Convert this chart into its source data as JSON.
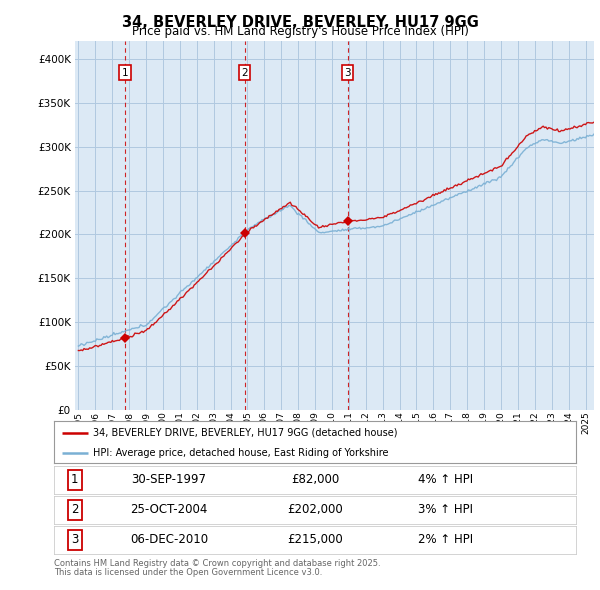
{
  "title": "34, BEVERLEY DRIVE, BEVERLEY, HU17 9GG",
  "subtitle": "Price paid vs. HM Land Registry's House Price Index (HPI)",
  "ylim": [
    0,
    420000
  ],
  "yticks": [
    0,
    50000,
    100000,
    150000,
    200000,
    250000,
    300000,
    350000,
    400000
  ],
  "legend_line1": "34, BEVERLEY DRIVE, BEVERLEY, HU17 9GG (detached house)",
  "legend_line2": "HPI: Average price, detached house, East Riding of Yorkshire",
  "footer1": "Contains HM Land Registry data © Crown copyright and database right 2025.",
  "footer2": "This data is licensed under the Open Government Licence v3.0.",
  "sale_color": "#cc0000",
  "hpi_color": "#7ab0d4",
  "vline_color": "#cc0000",
  "chart_bg": "#dce9f5",
  "background_color": "#ffffff",
  "grid_color": "#b0c8e0",
  "sales": [
    {
      "num": 1,
      "date_x": 1997.75,
      "price": 82000,
      "label": "30-SEP-1997",
      "pct": "4%"
    },
    {
      "num": 2,
      "date_x": 2004.83,
      "price": 202000,
      "label": "25-OCT-2004",
      "pct": "3%"
    },
    {
      "num": 3,
      "date_x": 2010.92,
      "price": 215000,
      "label": "06-DEC-2010",
      "pct": "2%"
    }
  ],
  "hpi_start_year": 1995.0,
  "hpi_end_year": 2025.5,
  "x_tick_years": [
    1995,
    1996,
    1997,
    1998,
    1999,
    2000,
    2001,
    2002,
    2003,
    2004,
    2005,
    2006,
    2007,
    2008,
    2009,
    2010,
    2011,
    2012,
    2013,
    2014,
    2015,
    2016,
    2017,
    2018,
    2019,
    2020,
    2021,
    2022,
    2023,
    2024,
    2025
  ],
  "table_rows": [
    {
      "num": "1",
      "date": "30-SEP-1997",
      "price": "£82,000",
      "pct": "4% ↑ HPI"
    },
    {
      "num": "2",
      "date": "25-OCT-2004",
      "price": "£202,000",
      "pct": "3% ↑ HPI"
    },
    {
      "num": "3",
      "date": "06-DEC-2010",
      "price": "£215,000",
      "pct": "2% ↑ HPI"
    }
  ]
}
